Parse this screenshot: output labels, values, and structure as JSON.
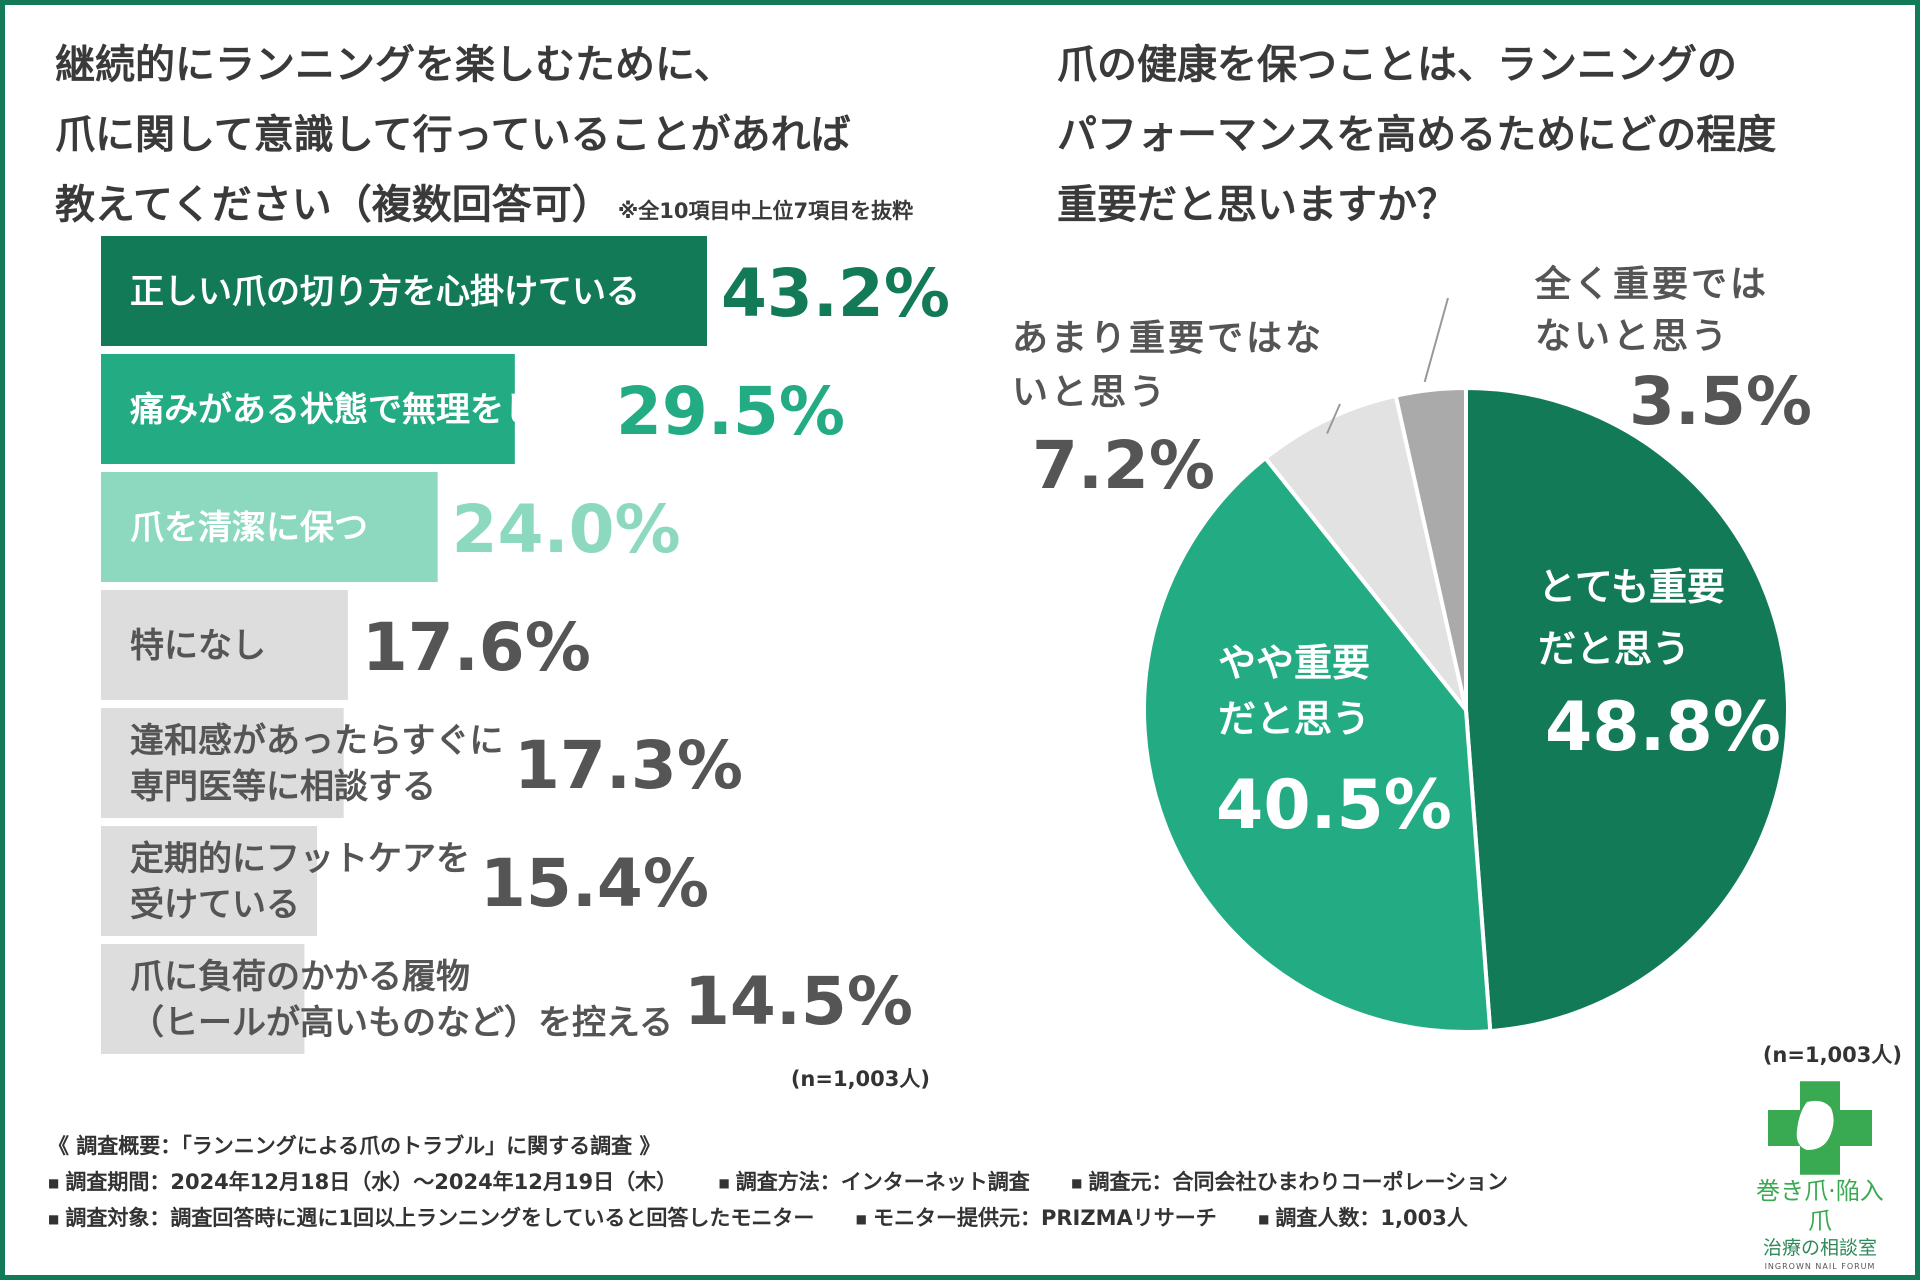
{
  "titles": {
    "left": [
      "継続的にランニングを楽しむために、",
      "爪に関して意識して行っていることがあれば",
      "教えてください（複数回答可）"
    ],
    "left_note": "※全10項目中上位7項目を抜粋",
    "right": [
      "爪の健康を保つことは、ランニングの",
      "パフォーマンスを高めるためにどの程度",
      "重要だと思いますか？"
    ]
  },
  "chart_data": [
    {
      "type": "bar",
      "orientation": "horizontal",
      "title": "継続的にランニングを楽しむために、爪に関して意識して行っていることがあれば教えてください（複数回答可）",
      "note": "※全10項目中上位7項目を抜粋",
      "unit": "%",
      "categories": [
        [
          "正しい爪の切り方を心掛けている"
        ],
        [
          "痛みがある状態で無理をしない"
        ],
        [
          "爪を清潔に保つ"
        ],
        [
          "特になし"
        ],
        [
          "違和感があったらすぐに",
          "専門医等に相談する"
        ],
        [
          "定期的にフットケアを",
          "受けている"
        ],
        [
          "爪に負荷のかかる履物",
          "（ヒールが高いものなど）を控える"
        ]
      ],
      "values": [
        43.2,
        29.5,
        24.0,
        17.6,
        17.3,
        15.4,
        14.5
      ],
      "value_labels": [
        "43.2%",
        "29.5%",
        "24.0%",
        "17.6%",
        "17.3%",
        "15.4%",
        "14.5%"
      ],
      "colors": [
        "#127a57",
        "#23ac84",
        "#8cd9c0",
        "#dddddd",
        "#dddddd",
        "#dddddd",
        "#dddddd"
      ],
      "label_colors": [
        "#127a57",
        "#23ac84",
        "#8cd9c0",
        "#555555",
        "#555555",
        "#555555",
        "#555555"
      ],
      "n_label": "(n=1,003人)"
    },
    {
      "type": "pie",
      "title": "爪の健康を保つことは、ランニングのパフォーマンスを高めるためにどの程度重要だと思いますか？",
      "slices": [
        {
          "label": [
            "とても重要",
            "だと思う"
          ],
          "value": 48.8,
          "value_label": "48.8%",
          "color": "#127a57"
        },
        {
          "label": [
            "やや重要",
            "だと思う"
          ],
          "value": 40.5,
          "value_label": "40.5%",
          "color": "#23ac84"
        },
        {
          "label": [
            "あまり重要ではな",
            "いと思う"
          ],
          "value": 7.2,
          "value_label": "7.2%",
          "color": "#e2e2e2"
        },
        {
          "label": [
            "全く重要では",
            "ないと思う"
          ],
          "value": 3.5,
          "value_label": "3.5%",
          "color": "#aaaaaa"
        }
      ],
      "n_label": "(n=1,003人)"
    }
  ],
  "footer": {
    "heading": "《 調査概要：「ランニングによる爪のトラブル」に関する調査 》",
    "row1": [
      "調査期間：2024年12月18日（水）～2024年12月19日（木）",
      "調査方法：インターネット調査",
      "調査元：合同会社ひまわりコーポレーション"
    ],
    "row2": [
      "調査対象：調査回答時に週に1回以上ランニングをしていると回答したモニター",
      "モニター提供元：PRIZMAリサーチ",
      "調査人数：1,003人"
    ],
    "bullet": "■"
  },
  "logo": {
    "line1": "巻き爪·陥入爪",
    "line2": "治療の相談室",
    "line3": "INGROWN NAIL FORUM",
    "icon": "green-cross-foot-icon"
  }
}
